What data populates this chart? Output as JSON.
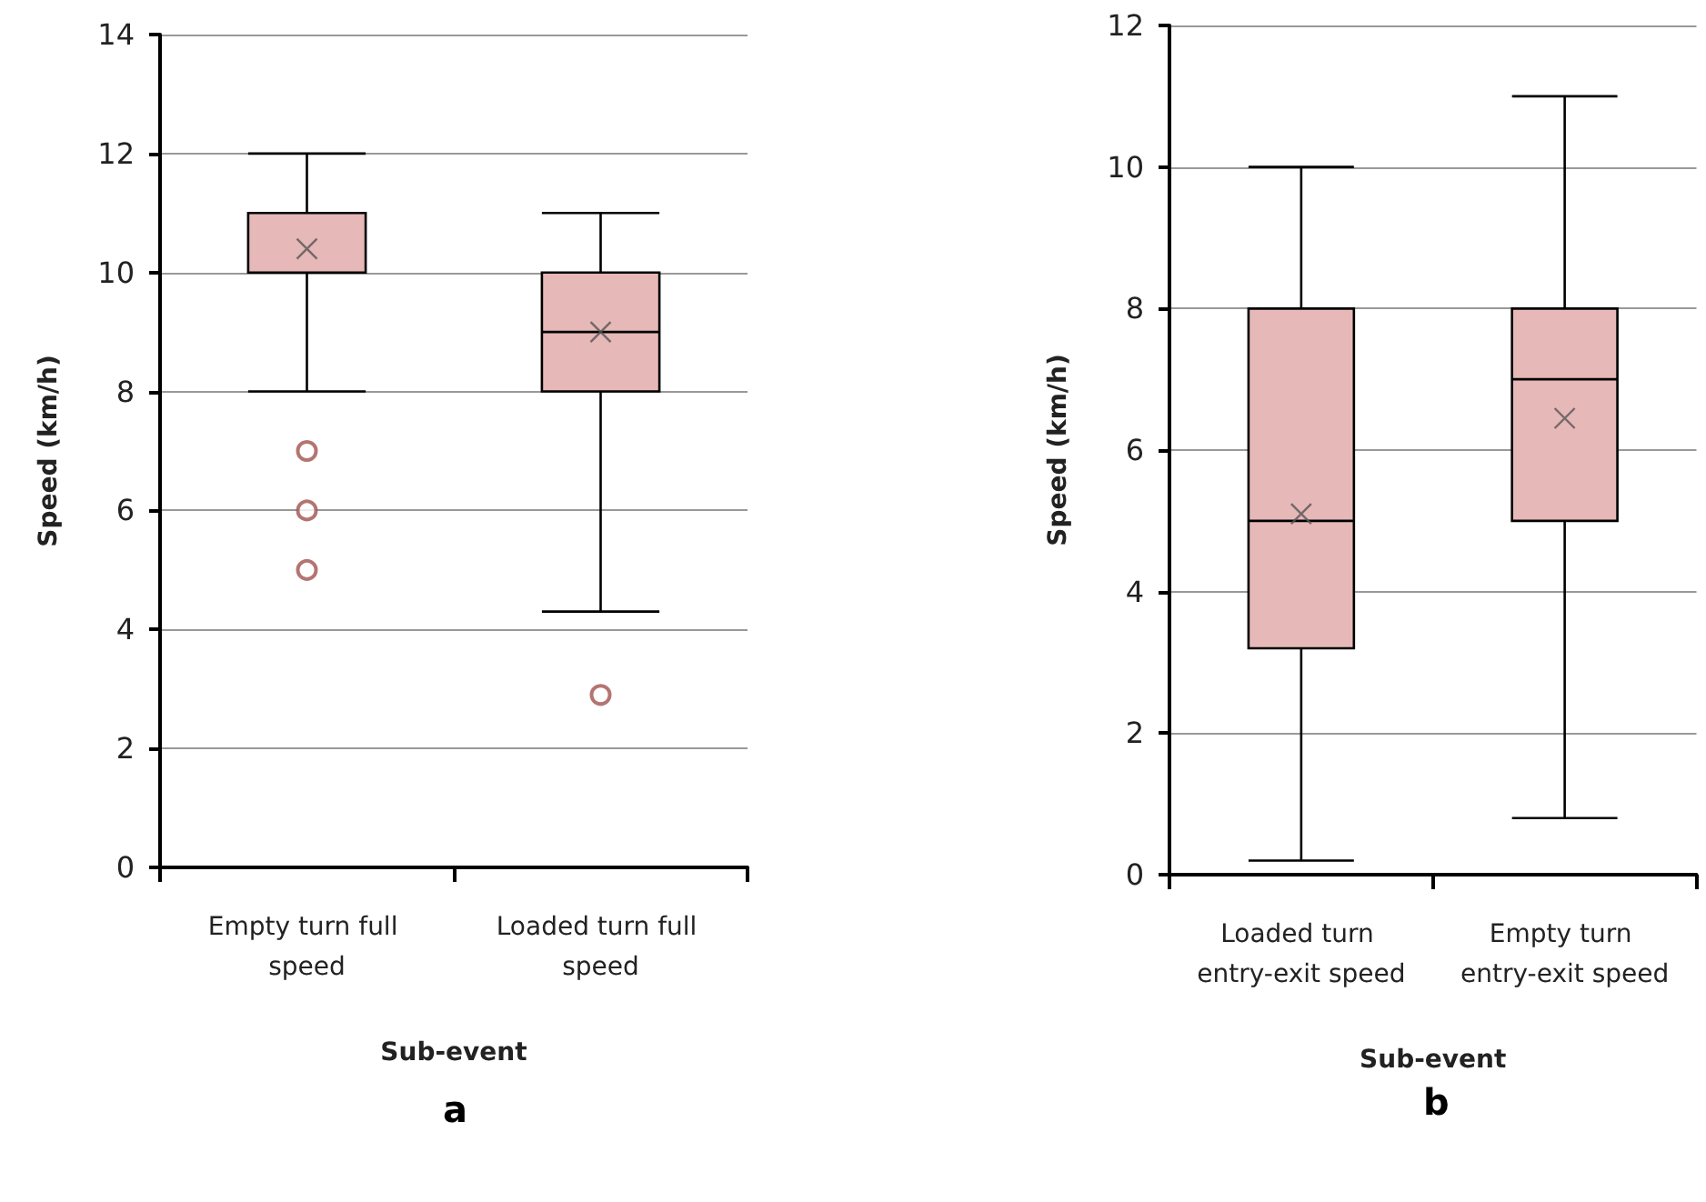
{
  "chart_data": [
    {
      "type": "box",
      "xlabel": "Sub-event",
      "ylabel": "Speed (km/h)",
      "categories": [
        "Empty turn full speed",
        "Loaded turn full speed"
      ],
      "color": "#e6b8b7",
      "boxes": [
        {
          "low": 8,
          "q1": 10,
          "median": 10,
          "q3": 11,
          "high": 12,
          "mean": 10.4,
          "outliers": [
            7,
            6,
            5
          ]
        },
        {
          "low": 4.3,
          "q1": 8,
          "median": 9,
          "q3": 10,
          "high": 11,
          "mean": 9,
          "outliers": [
            2.9
          ]
        }
      ],
      "ylim": [
        0,
        14
      ],
      "yticks": [
        0,
        2,
        4,
        6,
        8,
        10,
        12,
        14
      ],
      "grid": "y",
      "annotations": [
        "a"
      ]
    },
    {
      "type": "box",
      "xlabel": "Sub-event",
      "ylabel": "Speed (km/h)",
      "categories": [
        "Loaded turn entry-exit speed",
        "Empty turn entry-exit speed"
      ],
      "color": "#e6b8b7",
      "boxes": [
        {
          "low": 0.2,
          "q1": 3.2,
          "median": 5,
          "q3": 8,
          "high": 10,
          "mean": 5.1
        },
        {
          "low": 0.8,
          "q1": 5,
          "median": 7,
          "q3": 8,
          "high": 11,
          "mean": 6.45
        }
      ],
      "ylim": [
        0,
        12
      ],
      "yticks": [
        0,
        2,
        4,
        6,
        8,
        10,
        12
      ],
      "grid": "y",
      "annotations": [
        "b"
      ]
    }
  ]
}
